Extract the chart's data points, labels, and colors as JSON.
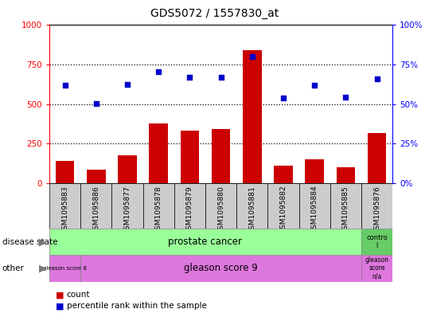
{
  "title": "GDS5072 / 1557830_at",
  "samples": [
    "GSM1095883",
    "GSM1095886",
    "GSM1095877",
    "GSM1095878",
    "GSM1095879",
    "GSM1095880",
    "GSM1095881",
    "GSM1095882",
    "GSM1095884",
    "GSM1095885",
    "GSM1095876"
  ],
  "counts": [
    140,
    85,
    175,
    375,
    330,
    340,
    840,
    110,
    150,
    100,
    315
  ],
  "percentiles": [
    62,
    50.5,
    62.5,
    70.5,
    67,
    67,
    80,
    54,
    62,
    54.5,
    66
  ],
  "bar_color": "#cc0000",
  "dot_color": "#0000cc",
  "left_ylim": [
    0,
    1000
  ],
  "right_ylim": [
    0,
    100
  ],
  "left_yticks": [
    0,
    250,
    500,
    750,
    1000
  ],
  "right_yticks": [
    0,
    25,
    50,
    75,
    100
  ],
  "left_ytick_labels": [
    "0",
    "250",
    "500",
    "750",
    "1000"
  ],
  "right_ytick_labels": [
    "0%",
    "25%",
    "50%",
    "75%",
    "100%"
  ],
  "disease_state_label": "disease state",
  "other_label": "other",
  "legend_count_label": "count",
  "legend_percentile_label": "percentile rank within the sample",
  "prostate_color": "#99ff99",
  "control_color": "#66cc66",
  "gleason_color": "#dd77dd",
  "gleason8_color": "#cc66cc",
  "xtick_box_color": "#cccccc",
  "grid_color": "#000000"
}
